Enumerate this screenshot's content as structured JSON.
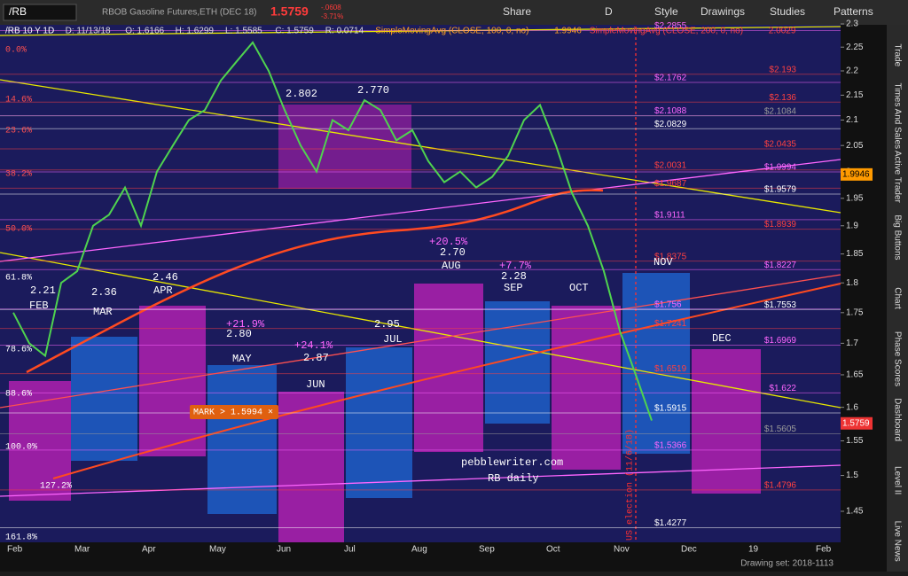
{
  "toolbar": {
    "symbol": "/RB",
    "description": "RBOB Gasoline Futures,ETH (DEC 18)",
    "last": "1.5759",
    "change": "-.0608",
    "change_pct": "-3.71%",
    "buttons": [
      "Share",
      "D",
      "Style",
      "Drawings",
      "Studies",
      "Patterns"
    ]
  },
  "info_bar": [
    "/RB 10 Y 1D",
    "D: 11/13/18",
    "O: 1.6166",
    "H: 1.6299",
    "L: 1.5585",
    "C: 1.5759",
    "R: 0.0714",
    "SimpleMovingAvg (CLOSE, 100, 0, no)",
    "1.9946",
    "SimpleMovingAvg (CLOSE, 200, 0, no)",
    "2.0029"
  ],
  "chart_data": {
    "type": "line",
    "log": true,
    "ylim": [
      1.39,
      2.33
    ],
    "yticks": [
      2.3,
      2.25,
      2.2,
      2.15,
      2.1,
      2.05,
      2,
      1.95,
      1.9,
      1.85,
      1.8,
      1.75,
      1.7,
      1.65,
      1.6,
      1.55,
      1.5,
      1.45
    ],
    "x_labels": [
      "Feb",
      "Mar",
      "Apr",
      "May",
      "Jun",
      "Jul",
      "Aug",
      "Sep",
      "Oct",
      "Nov",
      "Dec",
      "19",
      "Feb"
    ],
    "series": [
      {
        "color": "#4fd34f",
        "values": [
          1.75,
          1.7,
          1.68,
          1.8,
          1.82,
          1.9,
          1.92,
          1.97,
          1.9,
          2.0,
          2.05,
          2.1,
          2.12,
          2.18,
          2.22,
          2.26,
          2.2,
          2.12,
          2.05,
          2.0,
          2.1,
          2.08,
          2.14,
          2.12,
          2.06,
          2.08,
          2.02,
          1.98,
          2.0,
          1.97,
          1.99,
          2.03,
          2.1,
          2.13,
          2.05,
          1.96,
          1.9,
          1.82,
          1.72,
          1.65,
          1.58
        ]
      }
    ],
    "levels": [
      {
        "value": 2.2855,
        "label": "$2.2855",
        "color": "#ff66ff"
      },
      {
        "value": 2.193,
        "label": "$2.193",
        "color": "#ff4040"
      },
      {
        "value": 2.1762,
        "label": "$2.1762",
        "color": "#ff66ff"
      },
      {
        "value": 2.136,
        "label": "$2.136",
        "color": "#ff4040"
      },
      {
        "value": 2.1088,
        "label": "$2.1088",
        "color": "#ff66ff"
      },
      {
        "value": 2.1084,
        "label": "$2.1084",
        "color": "#999999"
      },
      {
        "value": 2.0829,
        "label": "$2.0829",
        "color": "#ffffff"
      },
      {
        "value": 2.0435,
        "label": "$2.0435",
        "color": "#ff4040"
      },
      {
        "value": 2.0031,
        "label": "$2.0031",
        "color": "#ff4040"
      },
      {
        "value": 1.9994,
        "label": "$1.9994",
        "color": "#ff66ff"
      },
      {
        "value": 1.9687,
        "label": "$1.9687",
        "color": "#ff4040"
      },
      {
        "value": 1.9579,
        "label": "$1.9579",
        "color": "#ffffff"
      },
      {
        "value": 1.9111,
        "label": "$1.9111",
        "color": "#ff66ff"
      },
      {
        "value": 1.8939,
        "label": "$1.8939",
        "color": "#ff4040"
      },
      {
        "value": 1.8375,
        "label": "$1.8375",
        "color": "#ff4040"
      },
      {
        "value": 1.8227,
        "label": "$1.8227",
        "color": "#ff66ff"
      },
      {
        "value": 1.756,
        "label": "$1.756",
        "color": "#ff66ff"
      },
      {
        "value": 1.7553,
        "label": "$1.7553",
        "color": "#ffffff"
      },
      {
        "value": 1.7241,
        "label": "$1.7241",
        "color": "#ff4040"
      },
      {
        "value": 1.6969,
        "label": "$1.6969",
        "color": "#ff66ff"
      },
      {
        "value": 1.6519,
        "label": "$1.6519",
        "color": "#ff4040"
      },
      {
        "value": 1.622,
        "label": "$1.622",
        "color": "#ff66ff"
      },
      {
        "value": 1.5915,
        "label": "$1.5915",
        "color": "#ffffff"
      },
      {
        "value": 1.5605,
        "label": "$1.5605",
        "color": "#999999"
      },
      {
        "value": 1.5366,
        "label": "$1.5366",
        "color": "#ff66ff"
      },
      {
        "value": 1.4796,
        "label": "$1.4796",
        "color": "#ff4040"
      },
      {
        "value": 1.4277,
        "label": "$1.4277",
        "color": "#ffffff"
      }
    ],
    "last_tag": "1.5759",
    "sma_tag": "1.9946"
  },
  "annotations": [
    "0.0%",
    "14.6%",
    "23.6%",
    "38.2%",
    "50.0%",
    "61.8%",
    "78.6%",
    "88.6%",
    "100.0%",
    "127.2%",
    "161.8%",
    "2.802",
    "2.770",
    "FEB",
    "MAR",
    "APR",
    "MAY",
    "JUN",
    "JUL",
    "AUG",
    "SEP",
    "OCT",
    "NOV",
    "DEC",
    "2.21",
    "2.36",
    "2.46",
    "2.80",
    "2.87",
    "2.95",
    "2.70",
    "2.28",
    "+21.9%",
    "+24.1%",
    "+20.5%",
    "+7.7%",
    "pebblewriter.com",
    "RB daily",
    "US election (11/6/18)",
    "MARK > 1.5994 ×"
  ],
  "side_tabs": [
    "Trade",
    "Times And Sales",
    "Active Trader",
    "Big Buttons",
    "Chart",
    "Phase Scores",
    "Dashboard",
    "Level II",
    "Live News"
  ],
  "footer": "Drawing set: 2018-1113"
}
